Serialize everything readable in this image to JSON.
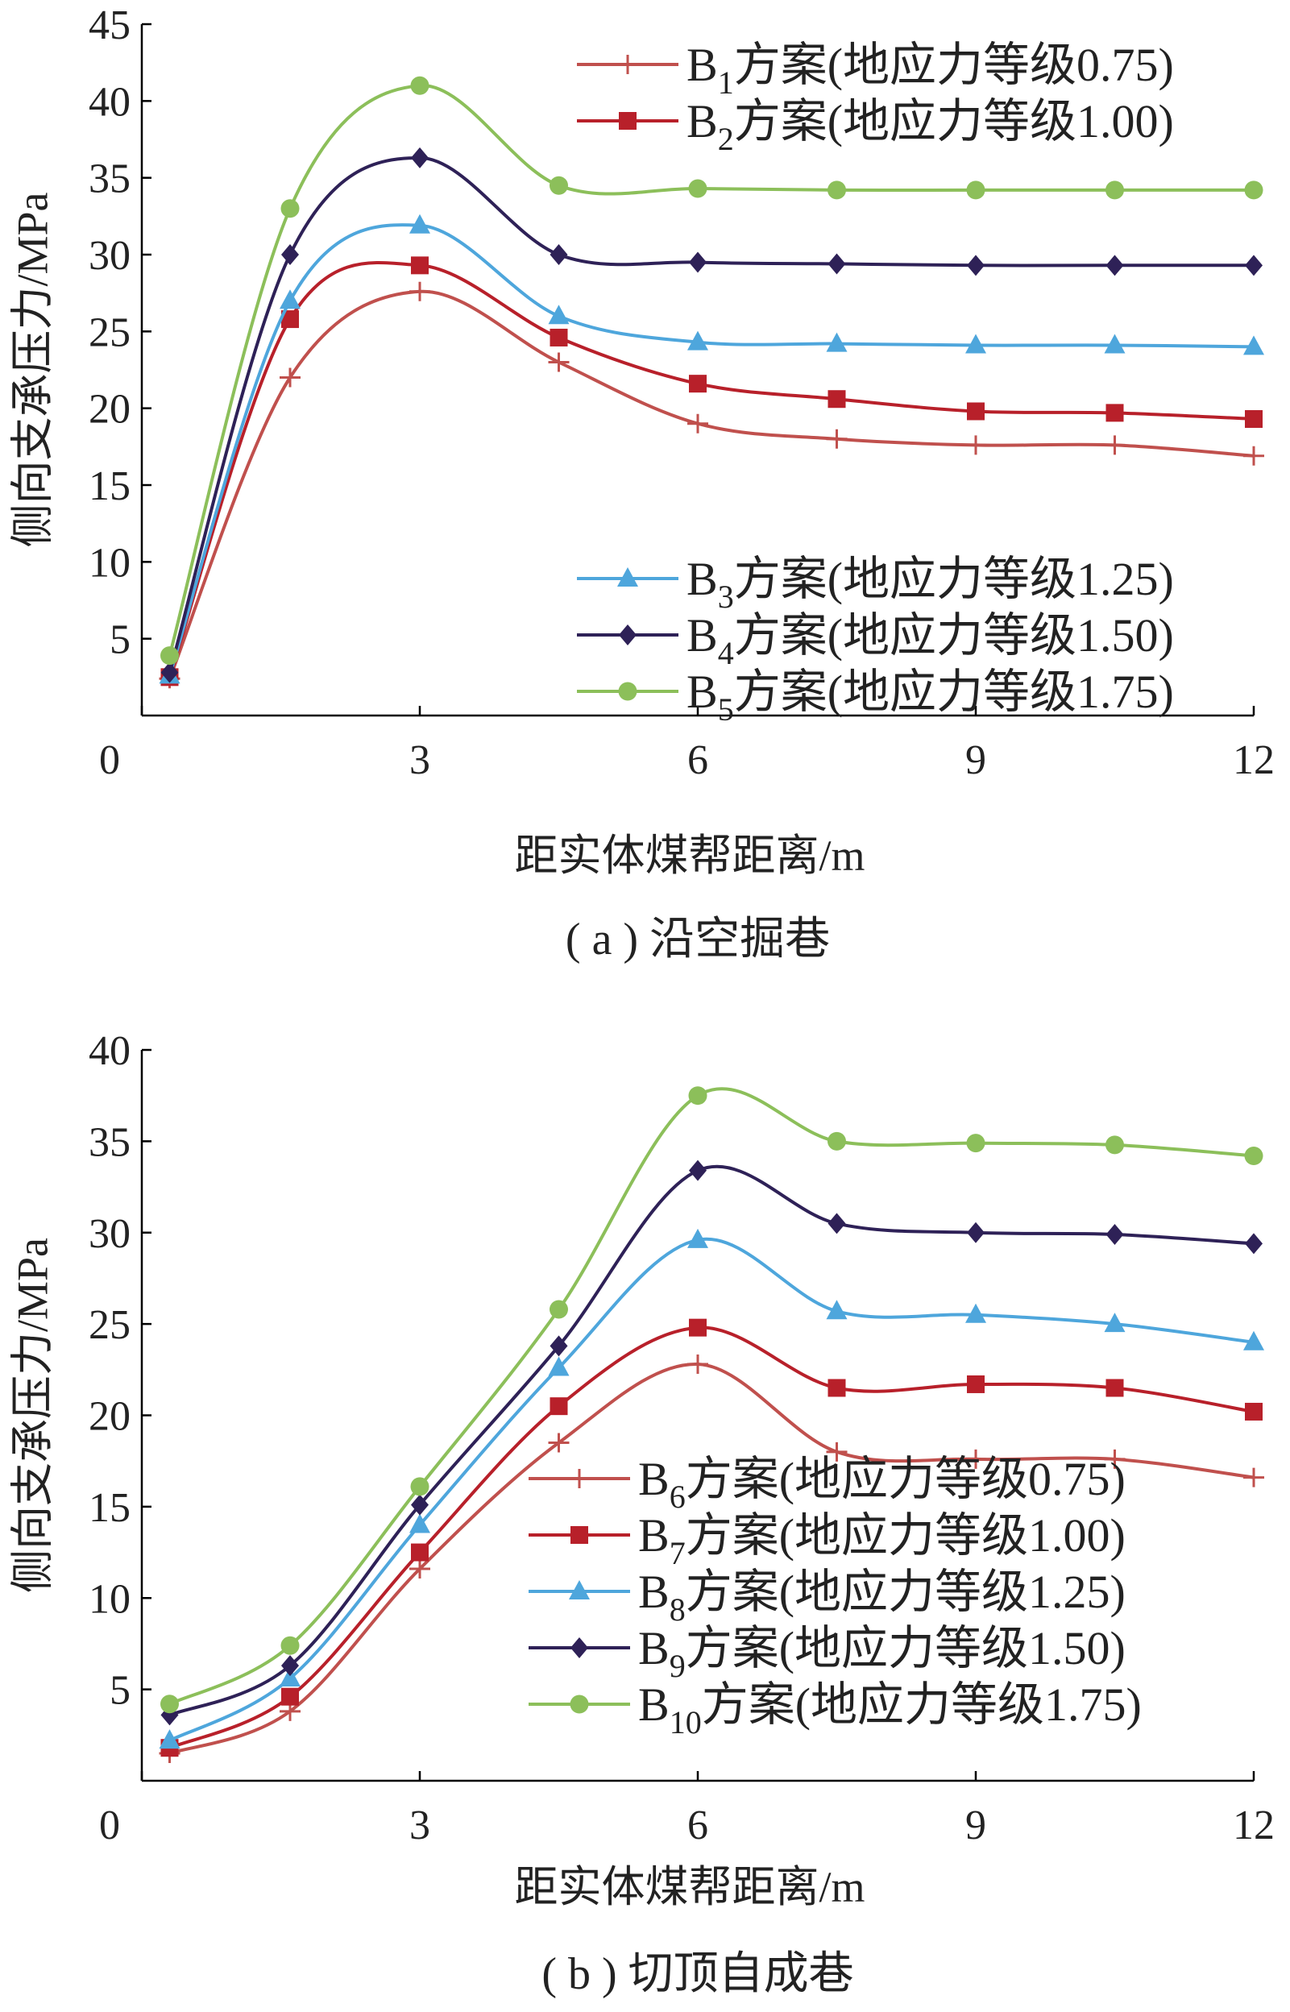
{
  "chart_data": [
    {
      "type": "line",
      "caption": "( a ) 沿空掘巷",
      "xlabel": "距实体煤帮距离/m",
      "ylabel": "侧向支承压力/MPa",
      "xlim": [
        0,
        12
      ],
      "ylim": [
        0,
        45
      ],
      "xticks": [
        "0",
        "3",
        "6",
        "9",
        "12"
      ],
      "yticks": [
        "5",
        "10",
        "15",
        "20",
        "25",
        "30",
        "35",
        "40",
        "45"
      ],
      "x": [
        0.3,
        1.6,
        3.0,
        4.5,
        6.0,
        7.5,
        9.0,
        10.5,
        12.0
      ],
      "series": [
        {
          "name": "B1方案(地应力等级0.75)",
          "label_main": "B",
          "label_sub": "1",
          "label_rest": "方案(地应力等级0.75)",
          "color": "#c0504d",
          "marker": "plus",
          "values": [
            2.4,
            22.0,
            27.6,
            23.0,
            19.0,
            18.0,
            17.6,
            17.6,
            16.9
          ]
        },
        {
          "name": "B2方案(地应力等级1.00)",
          "label_main": "B",
          "label_sub": "2",
          "label_rest": "方案(地应力等级1.00)",
          "color": "#b8202a",
          "marker": "square",
          "values": [
            2.5,
            25.8,
            29.3,
            24.6,
            21.6,
            20.6,
            19.8,
            19.7,
            19.3
          ]
        },
        {
          "name": "B3方案(地应力等级1.25)",
          "label_main": "B",
          "label_sub": "3",
          "label_rest": "方案(地应力等级1.25)",
          "color": "#4ea6dc",
          "marker": "triangle",
          "values": [
            2.6,
            27.0,
            31.9,
            26.0,
            24.3,
            24.2,
            24.1,
            24.1,
            24.0
          ]
        },
        {
          "name": "B4方案(地应力等级1.50)",
          "label_main": "B",
          "label_sub": "4",
          "label_rest": "方案(地应力等级1.50)",
          "color": "#2e2157",
          "marker": "diamond",
          "values": [
            2.8,
            30.0,
            36.3,
            30.0,
            29.5,
            29.4,
            29.3,
            29.3,
            29.3
          ]
        },
        {
          "name": "B5方案(地应力等级1.75)",
          "label_main": "B",
          "label_sub": "5",
          "label_rest": "方案(地应力等级1.75)",
          "color": "#8cbf5a",
          "marker": "circle",
          "values": [
            3.9,
            33.0,
            41.0,
            34.5,
            34.3,
            34.2,
            34.2,
            34.2,
            34.2
          ]
        }
      ]
    },
    {
      "type": "line",
      "caption": "( b ) 切顶自成巷",
      "xlabel": "距实体煤帮距离/m",
      "ylabel": "侧向支承压力/MPa",
      "xlim": [
        0,
        12
      ],
      "ylim": [
        0,
        40
      ],
      "xticks": [
        "0",
        "3",
        "6",
        "9",
        "12"
      ],
      "yticks": [
        "5",
        "10",
        "15",
        "20",
        "25",
        "30",
        "35",
        "40"
      ],
      "x": [
        0.3,
        1.6,
        3.0,
        4.5,
        6.0,
        7.5,
        9.0,
        10.5,
        12.0
      ],
      "series": [
        {
          "name": "B6方案(地应力等级0.75)",
          "label_main": "B",
          "label_sub": "6",
          "label_rest": "方案(地应力等级0.75)",
          "color": "#c0504d",
          "marker": "plus",
          "values": [
            1.5,
            3.8,
            11.6,
            18.5,
            22.8,
            18.0,
            17.6,
            17.6,
            16.6
          ]
        },
        {
          "name": "B7方案(地应力等级1.00)",
          "label_main": "B",
          "label_sub": "7",
          "label_rest": "方案(地应力等级1.00)",
          "color": "#b8202a",
          "marker": "square",
          "values": [
            1.8,
            4.6,
            12.5,
            20.5,
            24.8,
            21.5,
            21.7,
            21.5,
            20.2
          ]
        },
        {
          "name": "B8方案(地应力等级1.25)",
          "label_main": "B",
          "label_sub": "8",
          "label_rest": "方案(地应力等级1.25)",
          "color": "#4ea6dc",
          "marker": "triangle",
          "values": [
            2.2,
            5.6,
            14.0,
            22.6,
            29.6,
            25.7,
            25.5,
            25.0,
            24.0
          ]
        },
        {
          "name": "B9方案(地应力等级1.50)",
          "label_main": "B",
          "label_sub": "9",
          "label_rest": "方案(地应力等级1.50)",
          "color": "#2e2157",
          "marker": "diamond",
          "values": [
            3.6,
            6.3,
            15.1,
            23.8,
            33.4,
            30.5,
            30.0,
            29.9,
            29.4
          ]
        },
        {
          "name": "B10方案(地应力等级1.75)",
          "label_main": "B",
          "label_sub": "10",
          "label_rest": "方案(地应力等级1.75)",
          "color": "#8cbf5a",
          "marker": "circle",
          "values": [
            4.2,
            7.4,
            16.1,
            25.8,
            37.5,
            35.0,
            34.9,
            34.8,
            34.2
          ]
        }
      ]
    }
  ]
}
